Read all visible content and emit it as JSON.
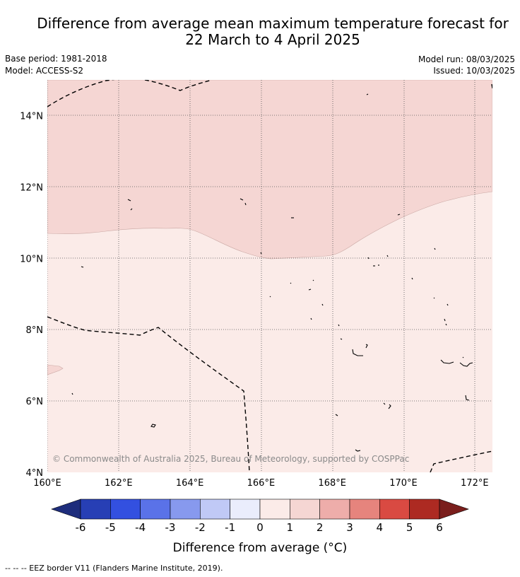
{
  "header": {
    "title_line1": "Difference from average mean maximum temperature forecast for",
    "title_line2": "22 March to 4 April 2025",
    "base_period": "Base period: 1981-2018",
    "model": "Model: ACCESS-S2",
    "model_run": "Model run: 08/03/2025",
    "issued": "Issued: 10/03/2025"
  },
  "map": {
    "lon_range": [
      160,
      172.5
    ],
    "lat_range": [
      4,
      15
    ],
    "lon_ticks": [
      "160°E",
      "162°E",
      "164°E",
      "166°E",
      "168°E",
      "170°E",
      "172°E"
    ],
    "lat_ticks": [
      "4°N",
      "6°N",
      "8°N",
      "10°N",
      "12°N",
      "14°N"
    ],
    "copyright": "© Commonwealth of Australia 2025, Bureau of Meteorology, supported by COSPPac",
    "anomaly_zones": [
      {
        "range": "1 to 2",
        "color": "#f5d6d3"
      },
      {
        "range": "0 to 1",
        "color": "#fbebe8"
      }
    ]
  },
  "legend": {
    "title": "Difference from average (°C)",
    "tick_labels": [
      "-6",
      "-5",
      "-4",
      "-3",
      "-2",
      "-1",
      "0",
      "1",
      "2",
      "3",
      "4",
      "5",
      "6"
    ],
    "colors": [
      "#1e2d7c",
      "#273fb5",
      "#3350e0",
      "#5a72e8",
      "#8799ee",
      "#c0c9f6",
      "#eaedfc",
      "#fbebe8",
      "#f5d6d3",
      "#eeadaa",
      "#e6847d",
      "#d94a42",
      "#ad2a22",
      "#7a1e1c"
    ]
  },
  "footer": {
    "eez_note": "--  --  -- EEZ border V11 (Flanders Marine Institute, 2019)."
  }
}
